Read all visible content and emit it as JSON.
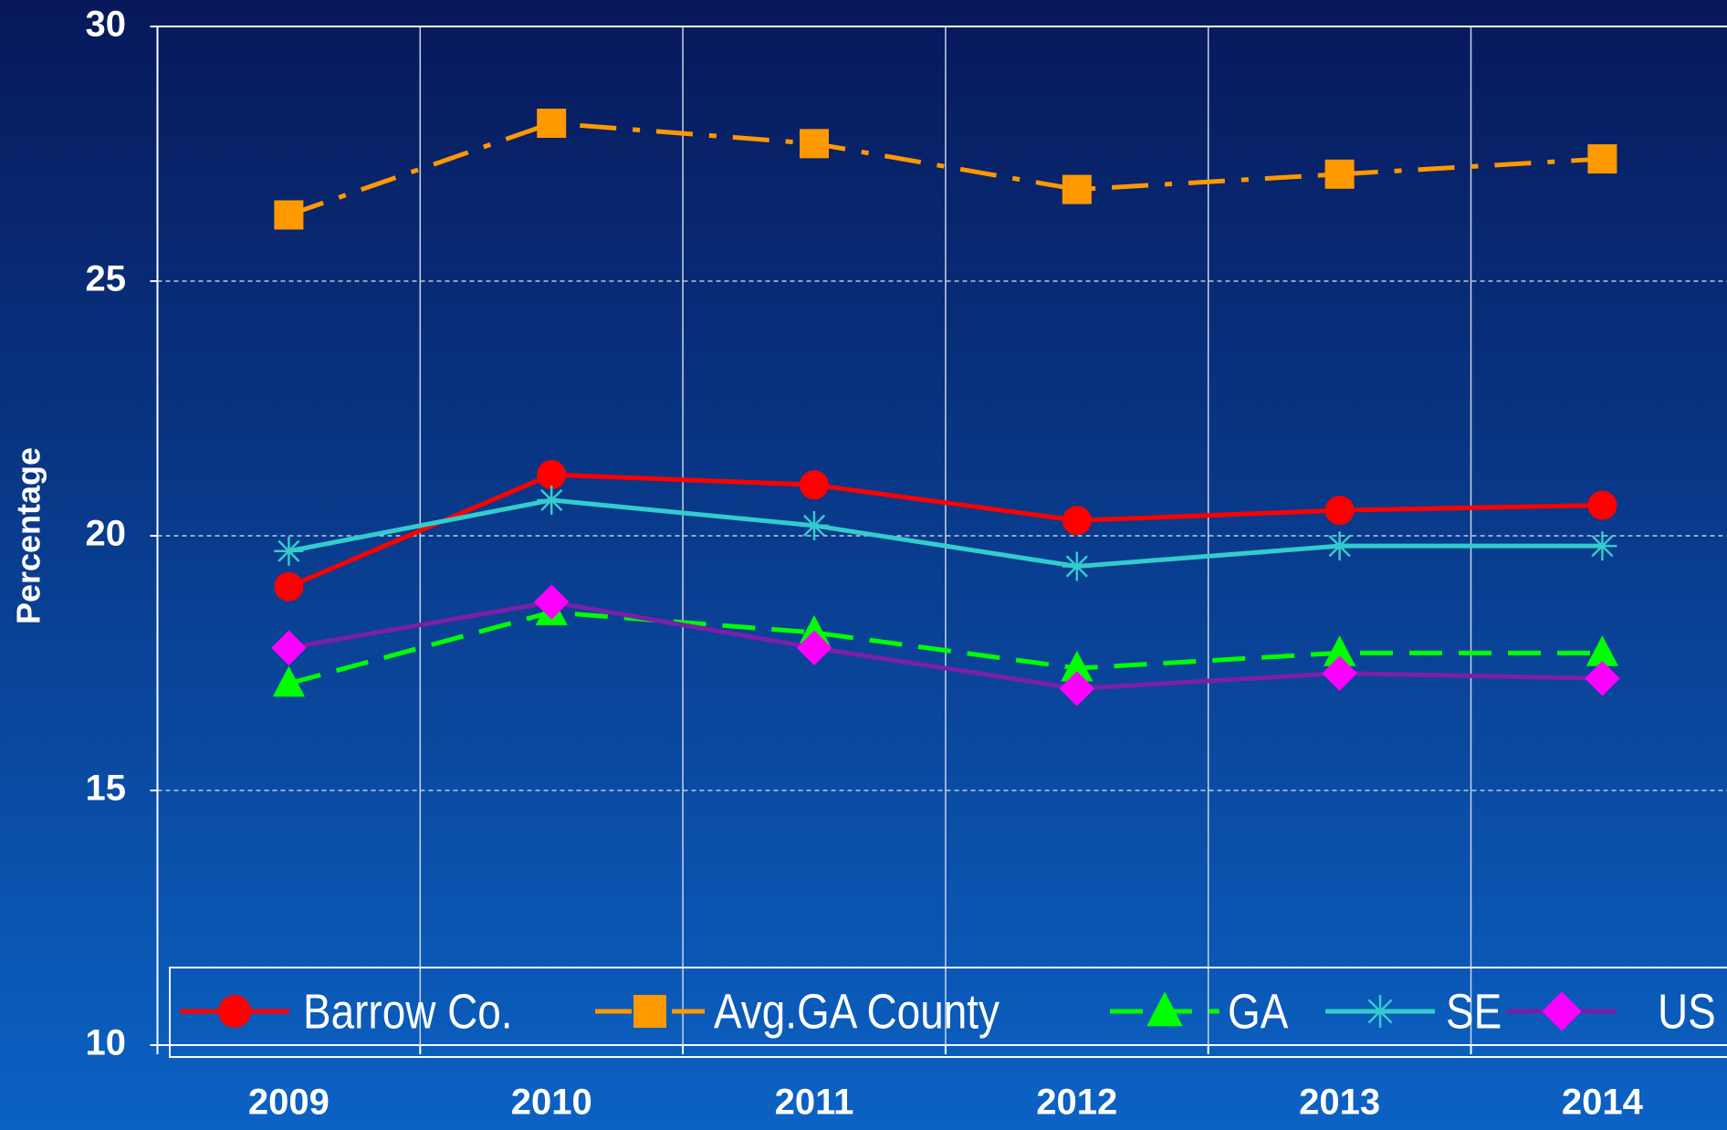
{
  "chart_data": {
    "type": "line",
    "y_label": "Percentage",
    "categories": [
      "2009",
      "2010",
      "2011",
      "2012",
      "2013",
      "2014"
    ],
    "series": [
      {
        "name": "Barrow Co.",
        "color": "#ff0000",
        "marker": "circle",
        "dash": "solid",
        "values": [
          19.0,
          21.2,
          21.0,
          20.3,
          20.5,
          20.6
        ]
      },
      {
        "name": "Avg.GA County",
        "color": "#ff9900",
        "marker": "square",
        "dash": "dashdot",
        "values": [
          26.3,
          28.1,
          27.7,
          26.8,
          27.1,
          27.4
        ]
      },
      {
        "name": "GA",
        "color": "#00ff00",
        "marker": "triangle",
        "dash": "dashed",
        "values": [
          17.1,
          18.5,
          18.1,
          17.4,
          17.7,
          17.7
        ]
      },
      {
        "name": "SE",
        "color": "#33cccc",
        "marker": "asterisk",
        "dash": "solid",
        "values": [
          19.7,
          20.7,
          20.2,
          19.4,
          19.8,
          19.8
        ]
      },
      {
        "name": "US",
        "color": "#7a1fa8",
        "marker_color": "#ff00ff",
        "marker": "diamond",
        "dash": "solid",
        "values": [
          17.8,
          18.7,
          17.8,
          17.0,
          17.3,
          17.2
        ]
      }
    ],
    "ylim": [
      10,
      30
    ],
    "yticks": [
      10,
      15,
      20,
      25,
      30
    ],
    "grid": true,
    "legend": "bottom"
  }
}
